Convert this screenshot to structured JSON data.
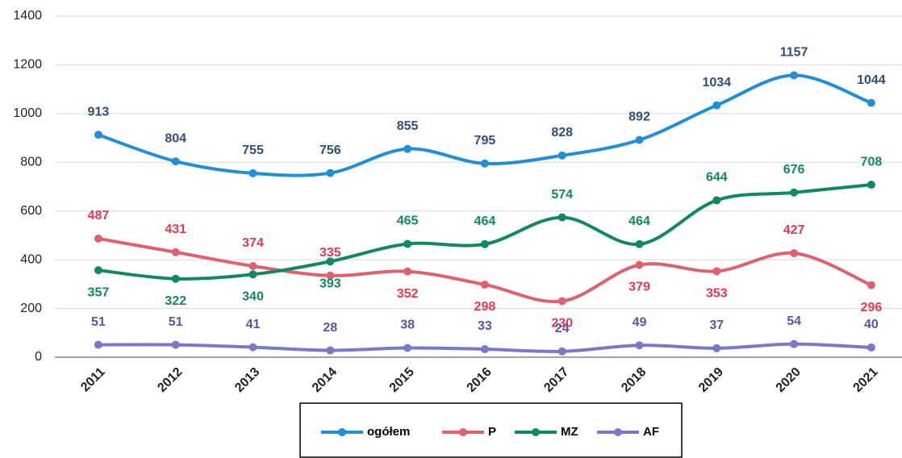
{
  "chart_data": {
    "type": "line",
    "categories": [
      "2011",
      "2012",
      "2013",
      "2014",
      "2015",
      "2016",
      "2017",
      "2018",
      "2019",
      "2020",
      "2021"
    ],
    "series": [
      {
        "name": "ogółem",
        "color": "#1f8fd6",
        "label_color": "#2e4f7a",
        "values": [
          913,
          804,
          755,
          756,
          855,
          795,
          828,
          892,
          1034,
          1157,
          1044
        ]
      },
      {
        "name": "P",
        "color": "#e0606e",
        "label_color": "#e8384f",
        "values": [
          487,
          431,
          374,
          335,
          352,
          298,
          230,
          379,
          353,
          427,
          296
        ]
      },
      {
        "name": "MZ",
        "color": "#0f8a5f",
        "label_color": "#0f8a5f",
        "values": [
          357,
          322,
          340,
          393,
          465,
          464,
          574,
          464,
          644,
          676,
          708
        ]
      },
      {
        "name": "AF",
        "color": "#7b78c8",
        "label_color": "#5a55a8",
        "values": [
          51,
          51,
          41,
          28,
          38,
          33,
          24,
          49,
          37,
          54,
          40
        ]
      }
    ],
    "ylim": [
      0,
      1400
    ],
    "yticks": [
      0,
      200,
      400,
      600,
      800,
      1000,
      1200,
      1400
    ],
    "grid": true,
    "legend": "bottom"
  }
}
